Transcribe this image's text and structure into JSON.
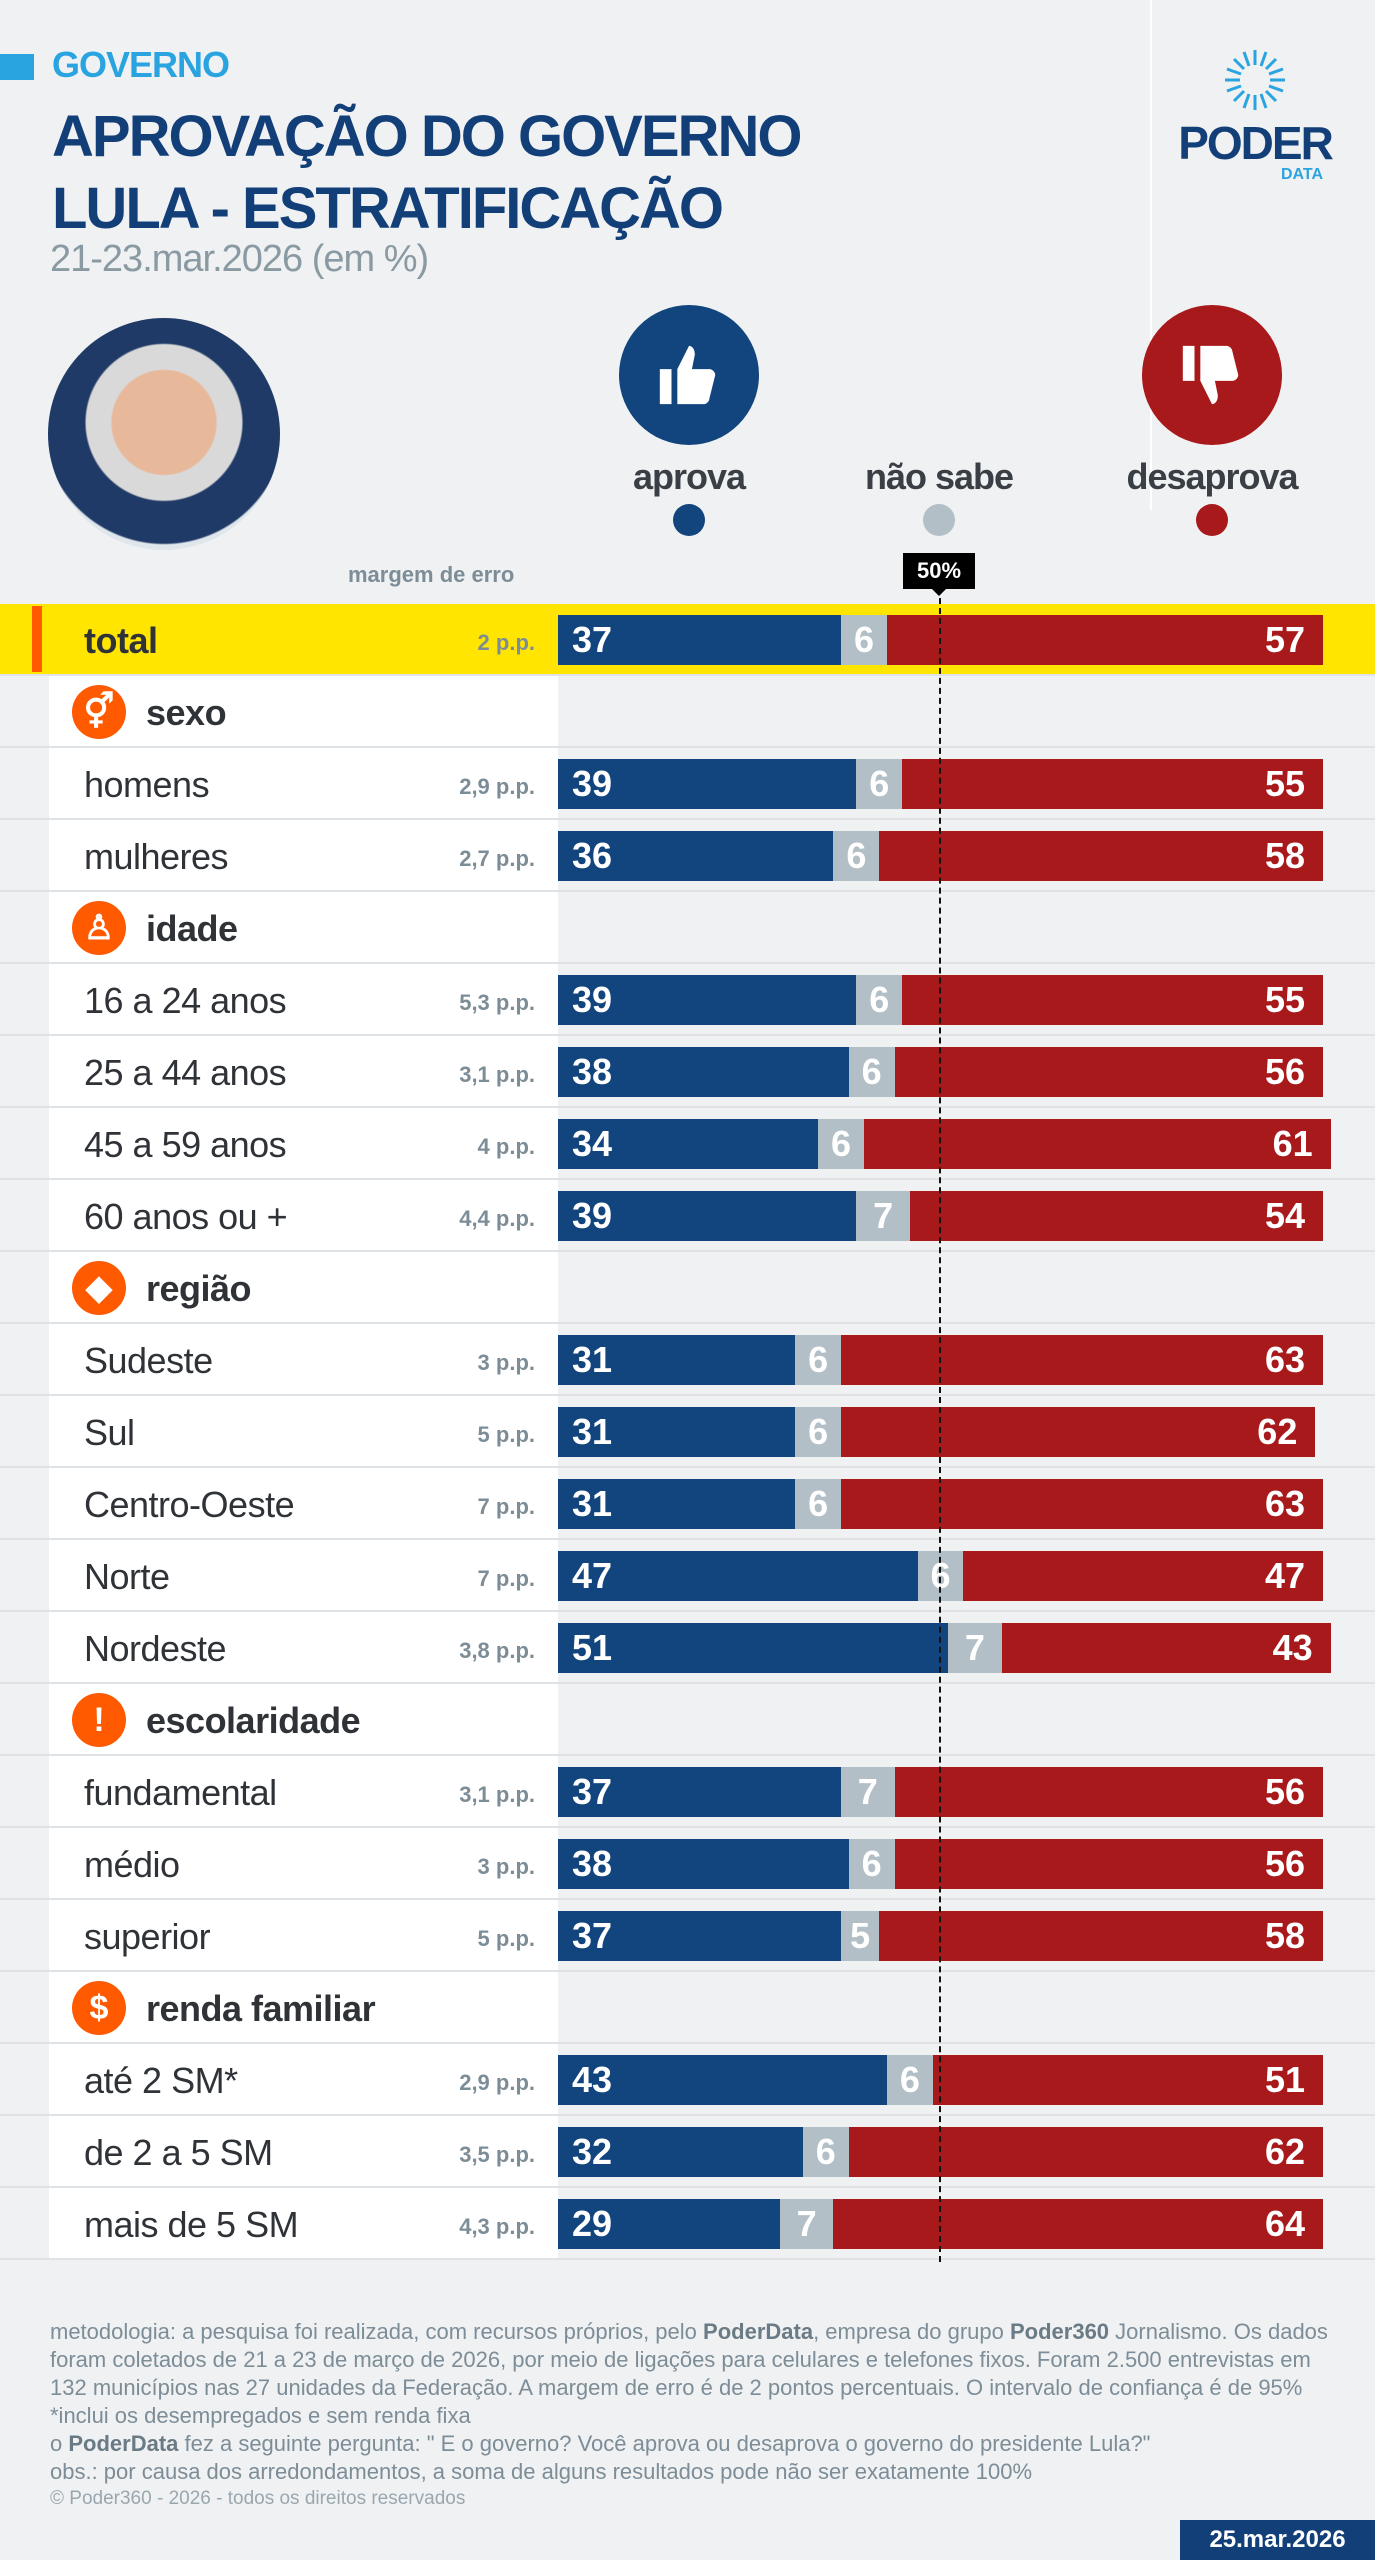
{
  "header": {
    "kicker": "GOVERNO",
    "title_line1": "APROVAÇÃO DO GOVERNO",
    "title_line2": "LULA - ESTRATIFICAÇÃO",
    "subtitle": "21-23.mar.2026 (em %)",
    "logo_word": "PODER",
    "logo_sub": "DATA"
  },
  "legend": {
    "aprova": "aprova",
    "nao_sabe": "não sabe",
    "desaprova": "desaprova"
  },
  "colors": {
    "aprova": "#12447e",
    "nao_sabe": "#b3bfc6",
    "desaprova": "#a8191b",
    "highlight": "#ffe500",
    "section_icon": "#ff5a00"
  },
  "margin_label": "margem de erro",
  "reference_label": "50%",
  "chart_data": {
    "type": "bar",
    "stacked": true,
    "orientation": "horizontal",
    "xlim": [
      0,
      100
    ],
    "reference_line": 50,
    "series_names": [
      "aprova",
      "não sabe",
      "desaprova"
    ],
    "rows": [
      {
        "kind": "total",
        "label": "total",
        "moe": "2 p.p.",
        "values": [
          37,
          6,
          57
        ]
      },
      {
        "kind": "header",
        "label": "sexo",
        "icon": "gender-icon"
      },
      {
        "kind": "data",
        "label": "homens",
        "moe": "2,9 p.p.",
        "values": [
          39,
          6,
          55
        ]
      },
      {
        "kind": "data",
        "label": "mulheres",
        "moe": "2,7 p.p.",
        "values": [
          36,
          6,
          58
        ]
      },
      {
        "kind": "header",
        "label": "idade",
        "icon": "person-icon"
      },
      {
        "kind": "data",
        "label": "16 a 24 anos",
        "moe": "5,3 p.p.",
        "values": [
          39,
          6,
          55
        ]
      },
      {
        "kind": "data",
        "label": "25 a 44 anos",
        "moe": "3,1 p.p.",
        "values": [
          38,
          6,
          56
        ]
      },
      {
        "kind": "data",
        "label": "45 a 59 anos",
        "moe": "4 p.p.",
        "values": [
          34,
          6,
          61
        ]
      },
      {
        "kind": "data",
        "label": "60 anos ou +",
        "moe": "4,4 p.p.",
        "values": [
          39,
          7,
          54
        ]
      },
      {
        "kind": "header",
        "label": "região",
        "icon": "brazil-map-icon"
      },
      {
        "kind": "data",
        "label": "Sudeste",
        "moe": "3 p.p.",
        "values": [
          31,
          6,
          63
        ]
      },
      {
        "kind": "data",
        "label": "Sul",
        "moe": "5 p.p.",
        "values": [
          31,
          6,
          62
        ]
      },
      {
        "kind": "data",
        "label": "Centro-Oeste",
        "moe": "7 p.p.",
        "values": [
          31,
          6,
          63
        ]
      },
      {
        "kind": "data",
        "label": "Norte",
        "moe": "7 p.p.",
        "values": [
          47,
          6,
          47
        ]
      },
      {
        "kind": "data",
        "label": "Nordeste",
        "moe": "3,8 p.p.",
        "values": [
          51,
          7,
          43
        ]
      },
      {
        "kind": "header",
        "label": "escolaridade",
        "icon": "exclamation-icon"
      },
      {
        "kind": "data",
        "label": "fundamental",
        "moe": "3,1 p.p.",
        "values": [
          37,
          7,
          56
        ]
      },
      {
        "kind": "data",
        "label": "médio",
        "moe": "3 p.p.",
        "values": [
          38,
          6,
          56
        ]
      },
      {
        "kind": "data",
        "label": "superior",
        "moe": "5 p.p.",
        "values": [
          37,
          5,
          58
        ]
      },
      {
        "kind": "header",
        "label": "renda familiar",
        "icon": "dollar-icon"
      },
      {
        "kind": "data",
        "label": "até 2 SM*",
        "moe": "2,9 p.p.",
        "values": [
          43,
          6,
          51
        ]
      },
      {
        "kind": "data",
        "label": "de 2 a 5 SM",
        "moe": "3,5 p.p.",
        "values": [
          32,
          6,
          62
        ]
      },
      {
        "kind": "data",
        "label": "mais de 5 SM",
        "moe": "4,3 p.p.",
        "values": [
          29,
          7,
          64
        ]
      }
    ]
  },
  "footer": {
    "m1": "metodologia: a pesquisa foi realizada, com recursos próprios, pelo ",
    "m2": "PoderData",
    "m3": ", empresa do grupo ",
    "m4": "Poder360",
    "m5": " Jornalismo. Os dados foram coletados de 21 a 23 de março de 2026, por meio de ligações para celulares e telefones fixos. Foram 2.500 entrevistas em 132 municípios nas 27 unidades da Federação. A margem de erro é de 2 pontos percentuais. O intervalo de confiança é de 95%",
    "note": "*inclui os desempregados e sem renda fixa",
    "q1": "o ",
    "q2": "PoderData",
    "q3": " fez a seguinte pergunta: \" E o governo? Você aprova ou desaprova o governo do presidente Lula?\"",
    "obs": "obs.: por causa dos arredondamentos, a soma de alguns resultados pode não ser exatamente 100%",
    "copyright": "© Poder360 - 2026 - todos os direitos reservados",
    "date": "25.mar.2026"
  }
}
